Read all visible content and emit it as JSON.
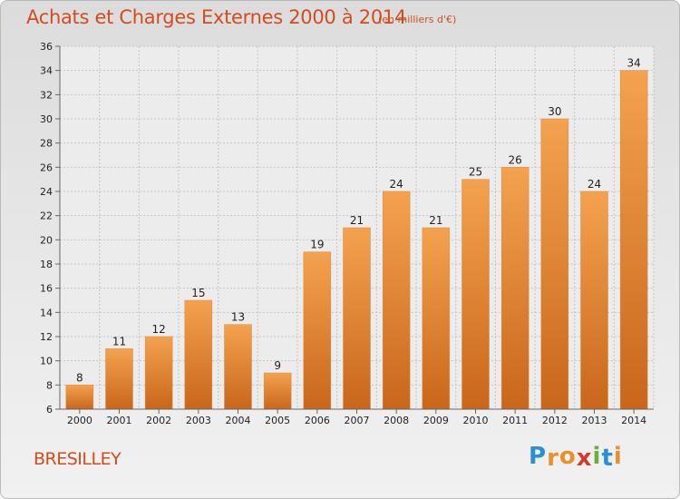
{
  "header": {
    "title": "Achats et Charges Externes 2000 à 2014",
    "subtitle": "(en milliers d'€)"
  },
  "footer": {
    "place": "BRESILLEY",
    "logo": {
      "letters": [
        "P",
        "r",
        "o",
        "x",
        "i",
        "t",
        "i"
      ],
      "colors": [
        "#2b8fd6",
        "#e8912a",
        "#e8912a",
        "#d23c2a",
        "#6cae3a",
        "#2b8fd6",
        "#e8912a"
      ]
    }
  },
  "colors": {
    "title": "#d14d1f",
    "bar_top": "#f4a24f",
    "bar_bottom": "#c9661c"
  },
  "chart_data": {
    "type": "bar",
    "title": "Achats et Charges Externes 2000 à 2014",
    "subtitle": "(en milliers d'€)",
    "categories": [
      "2000",
      "2001",
      "2002",
      "2003",
      "2004",
      "2005",
      "2006",
      "2007",
      "2008",
      "2009",
      "2010",
      "2011",
      "2012",
      "2013",
      "2014"
    ],
    "values": [
      8,
      11,
      12,
      15,
      13,
      9,
      19,
      21,
      24,
      21,
      25,
      26,
      30,
      24,
      34
    ],
    "ylim": [
      6,
      36
    ],
    "yticks": [
      6,
      8,
      10,
      12,
      14,
      16,
      18,
      20,
      22,
      24,
      26,
      28,
      30,
      32,
      34,
      36
    ],
    "grid": true,
    "data_labels": true
  }
}
